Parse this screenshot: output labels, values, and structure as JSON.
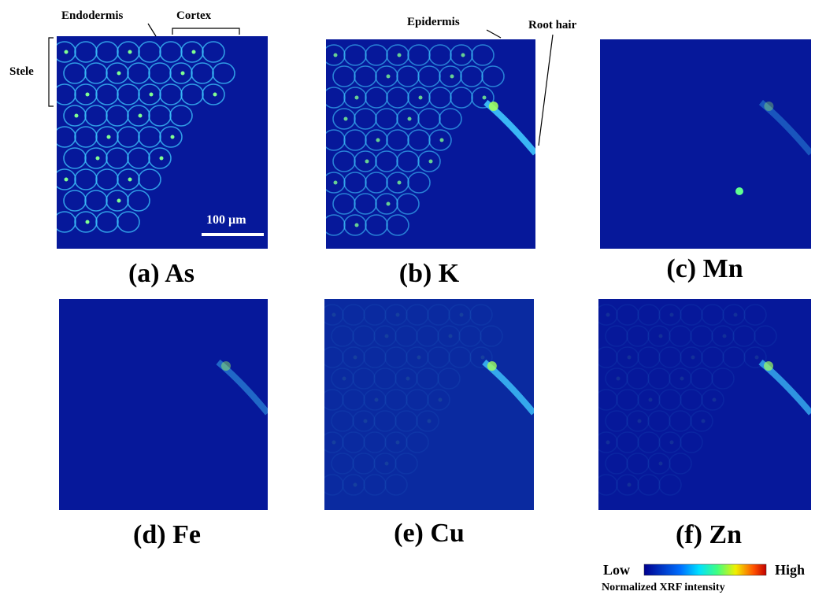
{
  "annotations": {
    "endodermis": "Endodermis",
    "cortex": "Cortex",
    "stele": "Stele",
    "epidermis": "Epidermis",
    "root_hair": "Root hair"
  },
  "scale_bar": "100 µm",
  "panels": [
    {
      "label": "(a) As"
    },
    {
      "label": "(b) K"
    },
    {
      "label": "(c) Mn"
    },
    {
      "label": "(d) Fe"
    },
    {
      "label": "(e) Cu"
    },
    {
      "label": "(f) Zn"
    }
  ],
  "colorbar": {
    "low": "Low",
    "high": "High",
    "title": "Normalized XRF intensity"
  }
}
